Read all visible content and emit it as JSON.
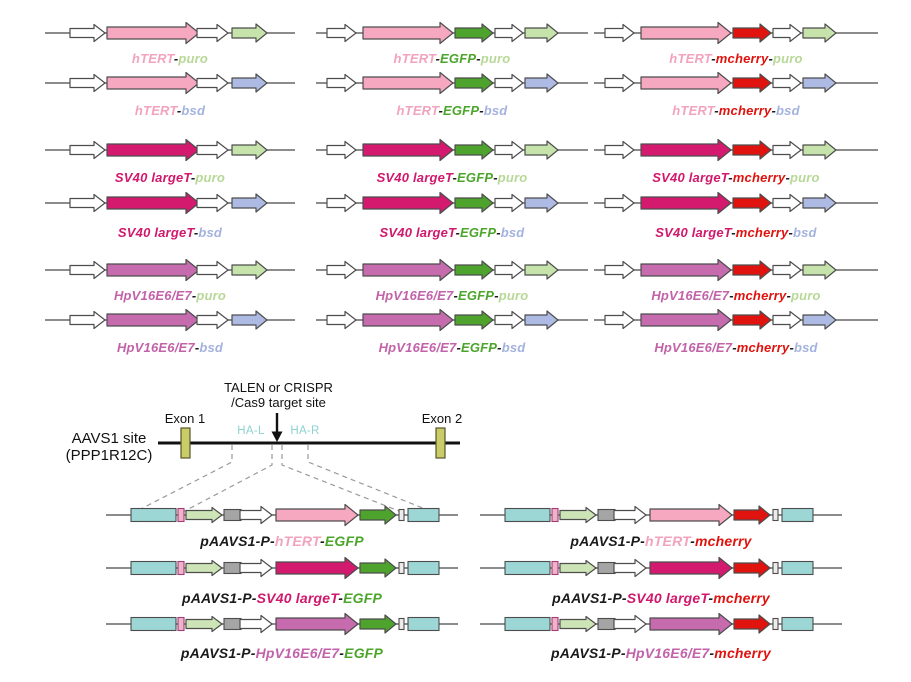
{
  "palette": {
    "outline": "#4d4d4d",
    "wire": "#666666",
    "genome_line": "#111111",
    "dash": "#9a9a9a",
    "exon_fill": "#c9cc67",
    "ha_text": "#8ed1d1",
    "fills": {
      "hTERT": "#f5a8c0",
      "SV40 largeT": "#d31a6e",
      "HpV16E6/E7": "#c56bae",
      "EGFP": "#4da32c",
      "mcherry": "#e0130f",
      "puro": "#c6e3ab",
      "bsd": "#adbae4",
      "white": "#ffffff",
      "pale_green": "#cde5b6",
      "cyan": "#9cd6d5",
      "gray": "#a5a5a5",
      "pink_box": "#efb3c9",
      "tiny_box": "#ececec"
    },
    "labels": {
      "plain": "#1a1a1a",
      "hTERT": "#f2a3bd",
      "SV40 largeT": "#d0186c",
      "HpV16E6/E7": "#c263aa",
      "EGFP": "#4ca52b",
      "mcherry": "#e0130f",
      "puro": "#b7d897",
      "bsd": "#a3b2de"
    }
  },
  "aavs1": {
    "site_label_line1": "AAVS1 site",
    "site_label_line2": "(PPP1R12C)",
    "exon1_label": "Exon 1",
    "exon2_label": "Exon 2",
    "target_label_line1": "TALEN or CRISPR",
    "target_label_line2": "/Cas9 target site",
    "ha_left_label": "HA-L",
    "ha_right_label": "HA-R"
  },
  "constructs": [
    {
      "id": "hTERT-puro",
      "kind": "top_single",
      "col": 0,
      "row": 0,
      "gene": "hTERT",
      "marker": "puro",
      "label": [
        [
          "hTERT",
          "hTERT"
        ],
        [
          "-",
          "plain"
        ],
        [
          "puro",
          "puro"
        ]
      ]
    },
    {
      "id": "hTERT-bsd",
      "kind": "top_single",
      "col": 0,
      "row": 1,
      "gene": "hTERT",
      "marker": "bsd",
      "label": [
        [
          "hTERT",
          "hTERT"
        ],
        [
          "-",
          "plain"
        ],
        [
          "bsd",
          "bsd"
        ]
      ]
    },
    {
      "id": "SV40largeT-puro",
      "kind": "top_single",
      "col": 0,
      "row": 2,
      "gene": "SV40 largeT",
      "marker": "puro",
      "label": [
        [
          "SV40 largeT",
          "SV40 largeT"
        ],
        [
          "-",
          "plain"
        ],
        [
          "puro",
          "puro"
        ]
      ]
    },
    {
      "id": "SV40largeT-bsd",
      "kind": "top_single",
      "col": 0,
      "row": 3,
      "gene": "SV40 largeT",
      "marker": "bsd",
      "label": [
        [
          "SV40 largeT",
          "SV40 largeT"
        ],
        [
          "-",
          "plain"
        ],
        [
          "bsd",
          "bsd"
        ]
      ]
    },
    {
      "id": "HpV16E6E7-puro",
      "kind": "top_single",
      "col": 0,
      "row": 4,
      "gene": "HpV16E6/E7",
      "marker": "puro",
      "label": [
        [
          "HpV16E6/E7",
          "HpV16E6/E7"
        ],
        [
          "-",
          "plain"
        ],
        [
          "puro",
          "puro"
        ]
      ]
    },
    {
      "id": "HpV16E6E7-bsd",
      "kind": "top_single",
      "col": 0,
      "row": 5,
      "gene": "HpV16E6/E7",
      "marker": "bsd",
      "label": [
        [
          "HpV16E6/E7",
          "HpV16E6/E7"
        ],
        [
          "-",
          "plain"
        ],
        [
          "bsd",
          "bsd"
        ]
      ]
    },
    {
      "id": "hTERT-EGFP-puro",
      "kind": "top_fp",
      "col": 1,
      "row": 0,
      "gene": "hTERT",
      "fp": "EGFP",
      "marker": "puro",
      "label": [
        [
          "hTERT",
          "hTERT"
        ],
        [
          "-",
          "plain"
        ],
        [
          "EGFP",
          "EGFP"
        ],
        [
          "-",
          "plain"
        ],
        [
          "puro",
          "puro"
        ]
      ]
    },
    {
      "id": "hTERT-EGFP-bsd",
      "kind": "top_fp",
      "col": 1,
      "row": 1,
      "gene": "hTERT",
      "fp": "EGFP",
      "marker": "bsd",
      "label": [
        [
          "hTERT",
          "hTERT"
        ],
        [
          "-",
          "plain"
        ],
        [
          "EGFP",
          "EGFP"
        ],
        [
          "-",
          "plain"
        ],
        [
          "bsd",
          "bsd"
        ]
      ]
    },
    {
      "id": "SV40largeT-EGFP-puro",
      "kind": "top_fp",
      "col": 1,
      "row": 2,
      "gene": "SV40 largeT",
      "fp": "EGFP",
      "marker": "puro",
      "label": [
        [
          "SV40 largeT",
          "SV40 largeT"
        ],
        [
          "-",
          "plain"
        ],
        [
          "EGFP",
          "EGFP"
        ],
        [
          "-",
          "plain"
        ],
        [
          "puro",
          "puro"
        ]
      ]
    },
    {
      "id": "SV40largeT-EGFP-bsd",
      "kind": "top_fp",
      "col": 1,
      "row": 3,
      "gene": "SV40 largeT",
      "fp": "EGFP",
      "marker": "bsd",
      "label": [
        [
          "SV40 largeT",
          "SV40 largeT"
        ],
        [
          "-",
          "plain"
        ],
        [
          "EGFP",
          "EGFP"
        ],
        [
          "-",
          "plain"
        ],
        [
          "bsd",
          "bsd"
        ]
      ]
    },
    {
      "id": "HpV16E6E7-EGFP-puro",
      "kind": "top_fp",
      "col": 1,
      "row": 4,
      "gene": "HpV16E6/E7",
      "fp": "EGFP",
      "marker": "puro",
      "label": [
        [
          "HpV16E6/E7",
          "HpV16E6/E7"
        ],
        [
          "-",
          "plain"
        ],
        [
          "EGFP",
          "EGFP"
        ],
        [
          "-",
          "plain"
        ],
        [
          "puro",
          "puro"
        ]
      ]
    },
    {
      "id": "HpV16E6E7-EGFP-bsd",
      "kind": "top_fp",
      "col": 1,
      "row": 5,
      "gene": "HpV16E6/E7",
      "fp": "EGFP",
      "marker": "bsd",
      "label": [
        [
          "HpV16E6/E7",
          "HpV16E6/E7"
        ],
        [
          "-",
          "plain"
        ],
        [
          "EGFP",
          "EGFP"
        ],
        [
          "-",
          "plain"
        ],
        [
          "bsd",
          "bsd"
        ]
      ]
    },
    {
      "id": "hTERT-mcherry-puro",
      "kind": "top_fp",
      "col": 2,
      "row": 0,
      "gene": "hTERT",
      "fp": "mcherry",
      "marker": "puro",
      "label": [
        [
          "hTERT",
          "hTERT"
        ],
        [
          "-",
          "plain"
        ],
        [
          "mcherry",
          "mcherry"
        ],
        [
          "-",
          "plain"
        ],
        [
          "puro",
          "puro"
        ]
      ]
    },
    {
      "id": "hTERT-mcherry-bsd",
      "kind": "top_fp",
      "col": 2,
      "row": 1,
      "gene": "hTERT",
      "fp": "mcherry",
      "marker": "bsd",
      "label": [
        [
          "hTERT",
          "hTERT"
        ],
        [
          "-",
          "plain"
        ],
        [
          "mcherry",
          "mcherry"
        ],
        [
          "-",
          "plain"
        ],
        [
          "bsd",
          "bsd"
        ]
      ]
    },
    {
      "id": "SV40largeT-mcherry-puro",
      "kind": "top_fp",
      "col": 2,
      "row": 2,
      "gene": "SV40 largeT",
      "fp": "mcherry",
      "marker": "puro",
      "label": [
        [
          "SV40 largeT",
          "SV40 largeT"
        ],
        [
          "-",
          "plain"
        ],
        [
          "mcherry",
          "mcherry"
        ],
        [
          "-",
          "plain"
        ],
        [
          "puro",
          "puro"
        ]
      ]
    },
    {
      "id": "SV40largeT-mcherry-bsd",
      "kind": "top_fp",
      "col": 2,
      "row": 3,
      "gene": "SV40 largeT",
      "fp": "mcherry",
      "marker": "bsd",
      "label": [
        [
          "SV40 largeT",
          "SV40 largeT"
        ],
        [
          "-",
          "plain"
        ],
        [
          "mcherry",
          "mcherry"
        ],
        [
          "-",
          "plain"
        ],
        [
          "bsd",
          "bsd"
        ]
      ]
    },
    {
      "id": "HpV16E6E7-mcherry-puro",
      "kind": "top_fp",
      "col": 2,
      "row": 4,
      "gene": "HpV16E6/E7",
      "fp": "mcherry",
      "marker": "puro",
      "label": [
        [
          "HpV16E6/E7",
          "HpV16E6/E7"
        ],
        [
          "-",
          "plain"
        ],
        [
          "mcherry",
          "mcherry"
        ],
        [
          "-",
          "plain"
        ],
        [
          "puro",
          "puro"
        ]
      ]
    },
    {
      "id": "HpV16E6E7-mcherry-bsd",
      "kind": "top_fp",
      "col": 2,
      "row": 5,
      "gene": "HpV16E6/E7",
      "fp": "mcherry",
      "marker": "bsd",
      "label": [
        [
          "HpV16E6/E7",
          "HpV16E6/E7"
        ],
        [
          "-",
          "plain"
        ],
        [
          "mcherry",
          "mcherry"
        ],
        [
          "-",
          "plain"
        ],
        [
          "bsd",
          "bsd"
        ]
      ]
    },
    {
      "id": "pAAVS1-P-hTERT-EGFP",
      "kind": "bottom",
      "col": 0,
      "row": 0,
      "gene": "hTERT",
      "fp": "EGFP",
      "label": [
        [
          "pAAVS1-P-",
          "plain"
        ],
        [
          "hTERT",
          "hTERT"
        ],
        [
          "-",
          "plain"
        ],
        [
          "EGFP",
          "EGFP"
        ]
      ]
    },
    {
      "id": "pAAVS1-P-SV40largeT-EGFP",
      "kind": "bottom",
      "col": 0,
      "row": 1,
      "gene": "SV40 largeT",
      "fp": "EGFP",
      "label": [
        [
          "pAAVS1-P-",
          "plain"
        ],
        [
          "SV40 largeT",
          "SV40 largeT"
        ],
        [
          "-",
          "plain"
        ],
        [
          "EGFP",
          "EGFP"
        ]
      ]
    },
    {
      "id": "pAAVS1-P-HpV16E6E7-EGFP",
      "kind": "bottom",
      "col": 0,
      "row": 2,
      "gene": "HpV16E6/E7",
      "fp": "EGFP",
      "label": [
        [
          "pAAVS1-P-",
          "plain"
        ],
        [
          "HpV16E6/E7",
          "HpV16E6/E7"
        ],
        [
          "-",
          "plain"
        ],
        [
          "EGFP",
          "EGFP"
        ]
      ]
    },
    {
      "id": "pAAVS1-P-hTERT-mcherry",
      "kind": "bottom",
      "col": 1,
      "row": 0,
      "gene": "hTERT",
      "fp": "mcherry",
      "label": [
        [
          "pAAVS1-P-",
          "plain"
        ],
        [
          "hTERT",
          "hTERT"
        ],
        [
          "-",
          "plain"
        ],
        [
          "mcherry",
          "mcherry"
        ]
      ]
    },
    {
      "id": "pAAVS1-P-SV40largeT-mcherry",
      "kind": "bottom",
      "col": 1,
      "row": 1,
      "gene": "SV40 largeT",
      "fp": "mcherry",
      "label": [
        [
          "pAAVS1-P-",
          "plain"
        ],
        [
          "SV40 largeT",
          "SV40 largeT"
        ],
        [
          "-",
          "plain"
        ],
        [
          "mcherry",
          "mcherry"
        ]
      ]
    },
    {
      "id": "pAAVS1-P-HpV16E6E7-mcherry",
      "kind": "bottom",
      "col": 1,
      "row": 2,
      "gene": "HpV16E6/E7",
      "fp": "mcherry",
      "label": [
        [
          "pAAVS1-P-",
          "plain"
        ],
        [
          "HpV16E6/E7",
          "HpV16E6/E7"
        ],
        [
          "-",
          "plain"
        ],
        [
          "mcherry",
          "mcherry"
        ]
      ]
    }
  ]
}
